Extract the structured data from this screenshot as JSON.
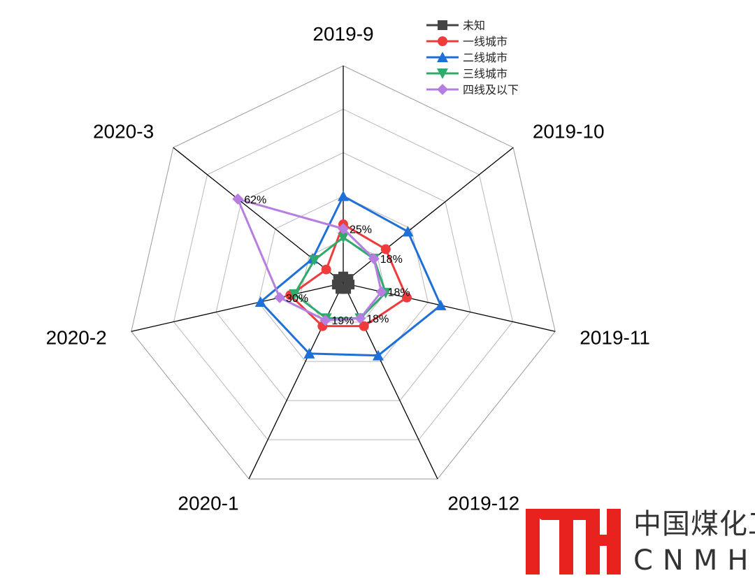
{
  "chart_data": {
    "type": "radar",
    "categories": [
      "2019-9",
      "2019-10",
      "2019-11",
      "2019-12",
      "2020-1",
      "2020-2",
      "2020-3"
    ],
    "rmax": 100,
    "grid_levels": 5,
    "series": [
      {
        "name": "未知",
        "color": "#444444",
        "marker": "square",
        "values": [
          3,
          3,
          3,
          3,
          3,
          3,
          3
        ]
      },
      {
        "name": "一线城市",
        "color": "#ef3b3b",
        "marker": "circle",
        "values": [
          27,
          25,
          30,
          22,
          22,
          25,
          10
        ]
      },
      {
        "name": "二线城市",
        "color": "#1f6fd8",
        "marker": "triangle-up",
        "values": [
          40,
          38,
          46,
          37,
          36,
          39,
          18
        ]
      },
      {
        "name": "三线城市",
        "color": "#2eaa6a",
        "marker": "triangle-down",
        "values": [
          21,
          18,
          20,
          18,
          18,
          23,
          17
        ]
      },
      {
        "name": "四线及以下",
        "color": "#b57ee0",
        "marker": "diamond",
        "values": [
          25,
          18,
          18,
          18,
          19,
          30,
          62
        ]
      }
    ],
    "data_labels": [
      {
        "series": "四线及以下",
        "index": 0,
        "text": "25%"
      },
      {
        "series": "四线及以下",
        "index": 1,
        "text": "18%"
      },
      {
        "series": "四线及以下",
        "index": 2,
        "text": "18%"
      },
      {
        "series": "四线及以下",
        "index": 3,
        "text": "18%"
      },
      {
        "series": "四线及以下",
        "index": 4,
        "text": "19%"
      },
      {
        "series": "四线及以下",
        "index": 5,
        "text": "30%"
      },
      {
        "series": "四线及以下",
        "index": 6,
        "text": "62%"
      }
    ],
    "legend_position": "top-right"
  },
  "logo": {
    "mark_color": "#e8231f",
    "cn_text": "中国煤化工",
    "en_text": "CNMHG"
  }
}
